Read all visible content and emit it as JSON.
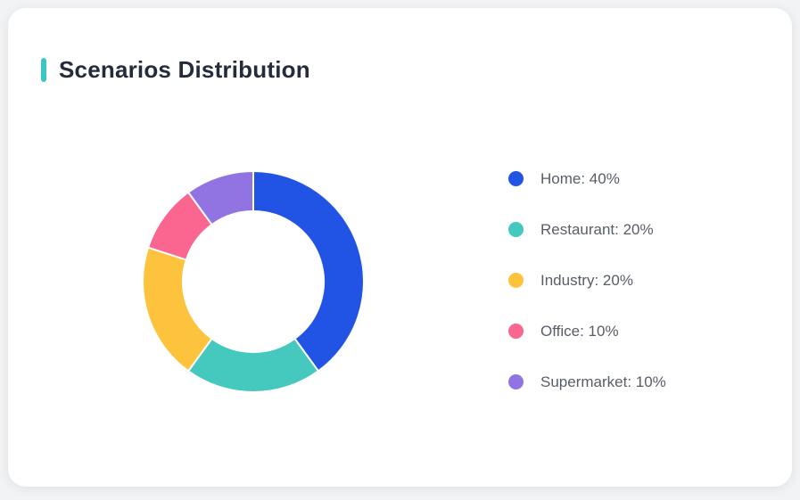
{
  "theme": {
    "page_bg": "#f2f3f5",
    "card_bg": "#ffffff",
    "accent": "#3bc7c3",
    "title_color": "#252b3b",
    "legend_text_color": "#585d68"
  },
  "card": {
    "title": "Scenarios Distribution"
  },
  "chart_data": {
    "type": "pie",
    "variant": "donut",
    "title": "Scenarios Distribution",
    "categories": [
      "Home",
      "Restaurant",
      "Industry",
      "Office",
      "Supermarket"
    ],
    "values": [
      40,
      20,
      20,
      10,
      10
    ],
    "unit": "%",
    "colors": [
      "#2153e4",
      "#45c8bd",
      "#fdc33c",
      "#fa668f",
      "#9173e2"
    ],
    "start_angle_deg": 0,
    "clockwise": true,
    "inner_radius_ratio": 0.64,
    "slice_gap_color": "#ffffff",
    "legend": {
      "position": "right",
      "entries": [
        "Home: 40%",
        "Restaurant: 20%",
        "Industry: 20%",
        "Office: 10%",
        "Supermarket: 10%"
      ]
    }
  }
}
